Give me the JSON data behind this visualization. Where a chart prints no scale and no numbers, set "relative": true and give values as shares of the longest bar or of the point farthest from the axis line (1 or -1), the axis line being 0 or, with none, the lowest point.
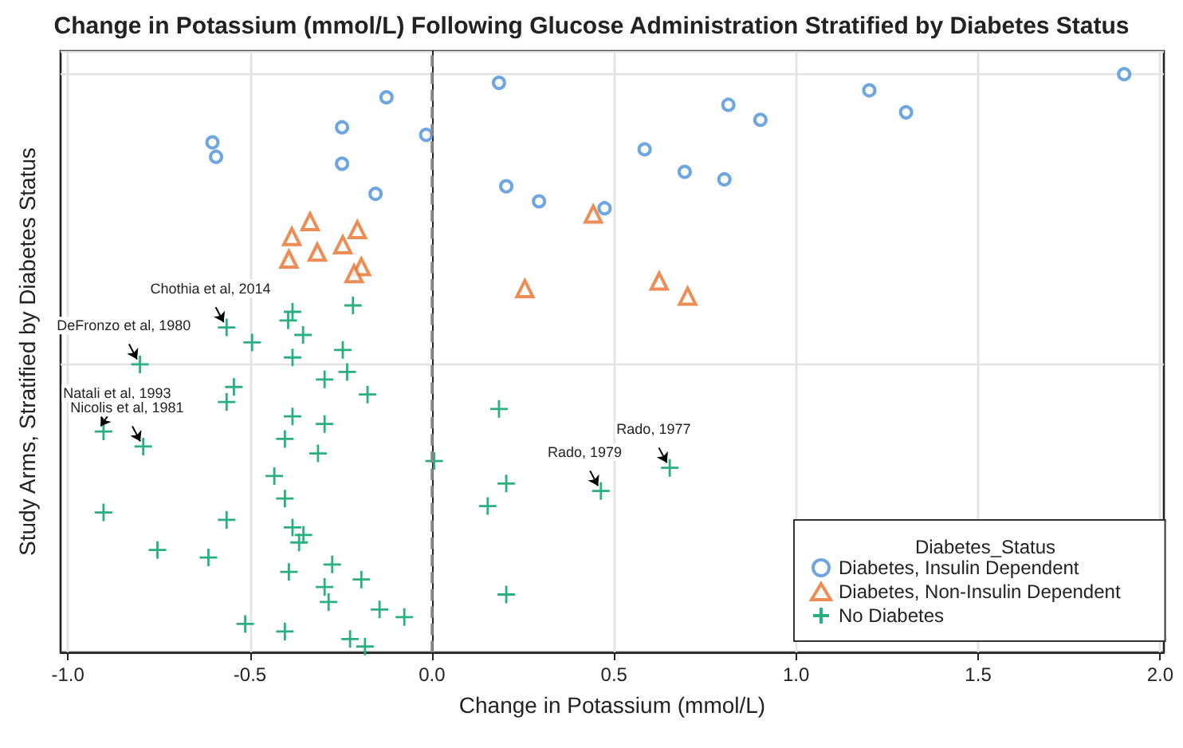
{
  "chart_data": {
    "type": "scatter",
    "title": "Change in Potassium (mmol/L) Following Glucose Administration Stratified by Diabetes Status",
    "xlabel": "Change in Potassium (mmol/L)",
    "ylabel": "Study Arms, Stratified by Diabetes Status",
    "legend_title": "Diabetes_Status",
    "relative": true,
    "xlim": [
      -1.02,
      2.01
    ],
    "xticks": [
      {
        "value": -1,
        "label": "-1.0"
      },
      {
        "value": -0.5,
        "label": "-0.5"
      },
      {
        "value": 0,
        "label": "0.0"
      },
      {
        "value": 0.5,
        "label": "0.5"
      },
      {
        "value": 1,
        "label": "1.0"
      },
      {
        "value": 1.5,
        "label": "1.5"
      },
      {
        "value": 2,
        "label": "2.0"
      }
    ],
    "grid": true,
    "legend": "bottom right",
    "ref_lines": [
      {
        "axis": "x",
        "value": 0,
        "color": "#888888",
        "line_style": "dashed"
      }
    ],
    "annotations": [
      {
        "text": "Chothia et al, 2014",
        "x": -0.564,
        "y": 0.562
      },
      {
        "text": "DeFronzo et al, 1980",
        "x": -0.802,
        "y": 0.498
      },
      {
        "text": "Natali et al, 1993",
        "x": -0.902,
        "y": 0.382
      },
      {
        "text": "Nicolis et al, 1981",
        "x": -0.793,
        "y": 0.356
      },
      {
        "text": "Rado, 1979",
        "x": 0.464,
        "y": 0.279
      },
      {
        "text": "Rado, 1977",
        "x": 0.653,
        "y": 0.319
      }
    ],
    "series": [
      {
        "name": "Diabetes, Insulin Dependent",
        "color": "#4a90d9",
        "marker": "circle",
        "x": [
          -0.603,
          -0.593,
          -0.125,
          -0.247,
          -0.247,
          -0.016,
          -0.155,
          0.184,
          0.204,
          0.294,
          0.474,
          0.584,
          0.814,
          0.902,
          0.694,
          0.803,
          1.201,
          1.302,
          1.901
        ],
        "values": [
          0.882,
          0.857,
          0.96,
          0.908,
          0.845,
          0.895,
          0.793,
          0.985,
          0.806,
          0.78,
          0.768,
          0.87,
          0.947,
          0.921,
          0.831,
          0.818,
          0.972,
          0.934,
          1.0
        ]
      },
      {
        "name": "Diabetes, Non-Insulin Dependent",
        "color": "#e8702a",
        "marker": "triangle",
        "x": [
          -0.335,
          -0.385,
          -0.205,
          -0.315,
          -0.245,
          -0.393,
          -0.194,
          -0.214,
          0.443,
          0.255,
          0.624,
          0.702
        ],
        "values": [
          0.745,
          0.719,
          0.731,
          0.692,
          0.705,
          0.68,
          0.667,
          0.655,
          0.758,
          0.629,
          0.642,
          0.616
        ]
      },
      {
        "name": "No Diabetes",
        "color": "#2ab07f",
        "marker": "cross",
        "x": [
          -0.217,
          -0.383,
          -0.395,
          -0.564,
          -0.354,
          -0.494,
          -0.245,
          -0.383,
          -0.802,
          -0.295,
          -0.233,
          -0.544,
          -0.177,
          -0.564,
          -0.383,
          -0.295,
          0.184,
          -0.902,
          -0.793,
          -0.404,
          -0.313,
          0.006,
          -0.433,
          0.204,
          0.464,
          -0.404,
          0.153,
          -0.902,
          -0.564,
          -0.383,
          -0.353,
          -0.365,
          -0.754,
          -0.614,
          -0.274,
          -0.393,
          -0.194,
          -0.295,
          0.204,
          -0.284,
          -0.144,
          -0.076,
          -0.513,
          -0.404,
          -0.225,
          -0.184,
          0.653
        ],
        "values": [
          0.6,
          0.589,
          0.574,
          0.562,
          0.549,
          0.536,
          0.523,
          0.51,
          0.498,
          0.472,
          0.485,
          0.459,
          0.446,
          0.433,
          0.408,
          0.395,
          0.421,
          0.382,
          0.356,
          0.369,
          0.344,
          0.331,
          0.305,
          0.292,
          0.279,
          0.266,
          0.253,
          0.242,
          0.229,
          0.216,
          0.203,
          0.19,
          0.177,
          0.164,
          0.152,
          0.139,
          0.126,
          0.113,
          0.1,
          0.087,
          0.074,
          0.061,
          0.049,
          0.036,
          0.023,
          0.01,
          0.319
        ]
      }
    ]
  }
}
